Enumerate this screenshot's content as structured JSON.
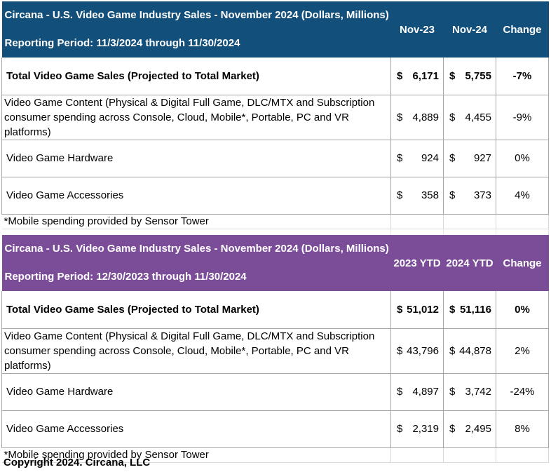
{
  "tables": [
    {
      "color": "#12507b",
      "title": "Circana - U.S. Video Game Industry Sales - November 2024 (Dollars, Millions)",
      "period": "Reporting Period: 11/3/2024 through 11/30/2024",
      "col1": "Nov-23",
      "col2": "Nov-24",
      "col3": "Change",
      "rows": [
        {
          "label": "Total Video Game Sales (Projected to Total Market)",
          "c": "$",
          "v1": "6,171",
          "v2": "5,755",
          "chg": "-7%"
        },
        {
          "label": "Video Game Content (Physical & Digital Full Game, DLC/MTX and Subscription",
          "label2": "consumer spending across Console, Cloud, Mobile*, Portable, PC and VR platforms)",
          "c": "$",
          "v1": "4,889",
          "v2": "4,455",
          "chg": "-9%"
        },
        {
          "label": "Video Game Hardware",
          "c": "$",
          "v1": "924",
          "v2": "927",
          "chg": "0%"
        },
        {
          "label": "Video Game Accessories",
          "c": "$",
          "v1": "358",
          "v2": "373",
          "chg": "4%"
        }
      ],
      "note": "*Mobile spending provided by Sensor Tower"
    },
    {
      "color": "#7b4c98",
      "title": "Circana - U.S. Video Game Industry Sales - November 2024 (Dollars, Millions)",
      "period": "Reporting Period: 12/30/2023 through 11/30/2024",
      "col1": "2023 YTD",
      "col2": "2024 YTD",
      "col3": "Change",
      "rows": [
        {
          "label": "Total Video Game Sales (Projected to Total Market)",
          "c": "$",
          "v1": "51,012",
          "v2": "51,116",
          "chg": "0%"
        },
        {
          "label": "Video Game Content (Physical & Digital Full Game, DLC/MTX and Subscription",
          "label2": "consumer spending across Console, Cloud, Mobile*, Portable, PC and VR platforms)",
          "c": "$",
          "v1": "43,796",
          "v2": "44,878",
          "chg": "2%"
        },
        {
          "label": "Video Game Hardware",
          "c": "$",
          "v1": "4,897",
          "v2": "3,742",
          "chg": "-24%"
        },
        {
          "label": "Video Game Accessories",
          "c": "$",
          "v1": "2,319",
          "v2": "2,495",
          "chg": "8%"
        }
      ],
      "note": "*Mobile spending provided by Sensor Tower"
    }
  ],
  "copyright": "Copyright 2024. Circana, LLC"
}
